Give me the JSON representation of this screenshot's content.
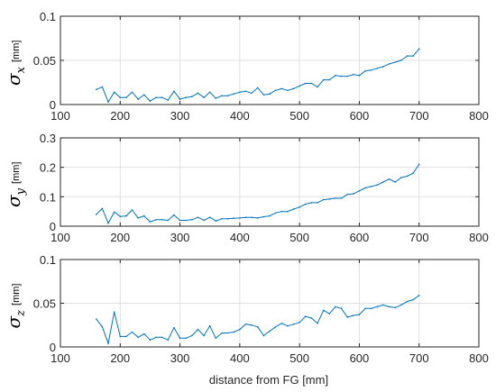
{
  "chart_data": [
    {
      "type": "line",
      "ylabel_symbol": "σ",
      "ylabel_subscript": "x",
      "ylabel_unit": "[mm]",
      "xlim": [
        100,
        800
      ],
      "ylim": [
        0,
        0.1
      ],
      "xticks": [
        "100",
        "200",
        "300",
        "400",
        "500",
        "600",
        "700",
        "800"
      ],
      "yticks": [
        "0",
        "0.05",
        "0.1"
      ],
      "ytick_values": [
        0,
        0.05,
        0.1
      ],
      "color": "#0072bd",
      "x": [
        160,
        170,
        180,
        190,
        200,
        210,
        220,
        230,
        240,
        250,
        260,
        270,
        280,
        290,
        300,
        310,
        320,
        330,
        340,
        350,
        360,
        370,
        380,
        390,
        400,
        410,
        420,
        430,
        440,
        450,
        460,
        470,
        480,
        490,
        500,
        510,
        520,
        530,
        540,
        550,
        560,
        570,
        580,
        590,
        600,
        610,
        620,
        630,
        640,
        650,
        660,
        670,
        680,
        690,
        700
      ],
      "y": [
        0.017,
        0.02,
        0.003,
        0.014,
        0.008,
        0.008,
        0.014,
        0.006,
        0.011,
        0.004,
        0.008,
        0.008,
        0.005,
        0.015,
        0.006,
        0.008,
        0.009,
        0.013,
        0.008,
        0.014,
        0.007,
        0.01,
        0.01,
        0.012,
        0.014,
        0.015,
        0.013,
        0.019,
        0.011,
        0.012,
        0.016,
        0.018,
        0.016,
        0.018,
        0.021,
        0.024,
        0.024,
        0.02,
        0.028,
        0.028,
        0.033,
        0.032,
        0.032,
        0.034,
        0.033,
        0.038,
        0.039,
        0.041,
        0.043,
        0.046,
        0.048,
        0.05,
        0.055,
        0.055,
        0.063
      ]
    },
    {
      "type": "line",
      "ylabel_symbol": "σ",
      "ylabel_subscript": "y",
      "ylabel_unit": "[mm]",
      "xlim": [
        100,
        800
      ],
      "ylim": [
        0,
        0.3
      ],
      "xticks": [
        "100",
        "200",
        "300",
        "400",
        "500",
        "600",
        "700",
        "800"
      ],
      "yticks": [
        "0",
        "0.1",
        "0.2",
        "0.3"
      ],
      "ytick_values": [
        0,
        0.1,
        0.2,
        0.3
      ],
      "color": "#0072bd",
      "x": [
        160,
        170,
        180,
        190,
        200,
        210,
        220,
        230,
        240,
        250,
        260,
        270,
        280,
        290,
        300,
        310,
        320,
        330,
        340,
        350,
        360,
        370,
        380,
        390,
        400,
        410,
        420,
        430,
        440,
        450,
        460,
        470,
        480,
        490,
        500,
        510,
        520,
        530,
        540,
        550,
        560,
        570,
        580,
        590,
        600,
        610,
        620,
        630,
        640,
        650,
        660,
        670,
        680,
        690,
        700
      ],
      "y": [
        0.04,
        0.06,
        0.01,
        0.048,
        0.033,
        0.035,
        0.055,
        0.028,
        0.035,
        0.015,
        0.022,
        0.022,
        0.02,
        0.038,
        0.02,
        0.02,
        0.022,
        0.03,
        0.02,
        0.03,
        0.018,
        0.025,
        0.025,
        0.027,
        0.028,
        0.03,
        0.03,
        0.028,
        0.032,
        0.035,
        0.045,
        0.05,
        0.05,
        0.058,
        0.065,
        0.075,
        0.08,
        0.08,
        0.09,
        0.092,
        0.095,
        0.095,
        0.108,
        0.11,
        0.12,
        0.13,
        0.135,
        0.14,
        0.15,
        0.16,
        0.15,
        0.165,
        0.17,
        0.18,
        0.21
      ]
    },
    {
      "type": "line",
      "ylabel_symbol": "σ",
      "ylabel_subscript": "z",
      "ylabel_unit": "[mm]",
      "xlabel": "distance from FG [mm]",
      "xlim": [
        100,
        800
      ],
      "ylim": [
        0,
        0.1
      ],
      "xticks": [
        "100",
        "200",
        "300",
        "400",
        "500",
        "600",
        "700",
        "800"
      ],
      "yticks": [
        "0",
        "0.05",
        "0.1"
      ],
      "ytick_values": [
        0,
        0.05,
        0.1
      ],
      "color": "#0072bd",
      "x": [
        160,
        170,
        180,
        190,
        200,
        210,
        220,
        230,
        240,
        250,
        260,
        270,
        280,
        290,
        300,
        310,
        320,
        330,
        340,
        350,
        360,
        370,
        380,
        390,
        400,
        410,
        420,
        430,
        440,
        450,
        460,
        470,
        480,
        490,
        500,
        510,
        520,
        530,
        540,
        550,
        560,
        570,
        580,
        590,
        600,
        610,
        620,
        630,
        640,
        650,
        660,
        670,
        680,
        690,
        700
      ],
      "y": [
        0.032,
        0.023,
        0.004,
        0.04,
        0.012,
        0.012,
        0.017,
        0.011,
        0.015,
        0.008,
        0.011,
        0.011,
        0.008,
        0.022,
        0.01,
        0.01,
        0.013,
        0.02,
        0.013,
        0.024,
        0.01,
        0.016,
        0.016,
        0.017,
        0.02,
        0.026,
        0.025,
        0.023,
        0.013,
        0.018,
        0.023,
        0.027,
        0.024,
        0.026,
        0.028,
        0.035,
        0.033,
        0.027,
        0.042,
        0.038,
        0.046,
        0.044,
        0.034,
        0.036,
        0.037,
        0.044,
        0.044,
        0.046,
        0.048,
        0.046,
        0.045,
        0.048,
        0.052,
        0.054,
        0.059
      ]
    }
  ]
}
